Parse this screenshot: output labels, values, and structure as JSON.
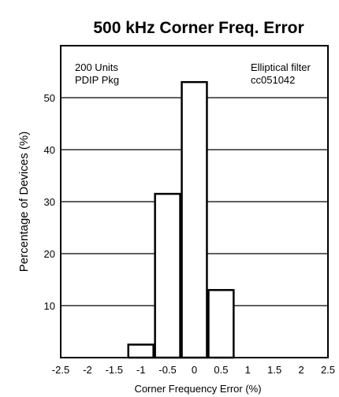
{
  "chart_data": {
    "type": "bar",
    "title": "500 kHz Corner Freq. Error",
    "xlabel": "Corner Frequency Error (%)",
    "ylabel": "Percentage of Devices (%)",
    "x_ticks": [
      "-2.5",
      "-2",
      "-1.5",
      "-1",
      "-0.5",
      "0",
      "0.5",
      "1",
      "1.5",
      "2",
      "2.5"
    ],
    "y_ticks": [
      "10",
      "20",
      "30",
      "40",
      "50"
    ],
    "xlim": [
      -2.5,
      2.5
    ],
    "ylim": [
      0,
      60
    ],
    "bin_width": 0.5,
    "bins": [
      {
        "center": -1.0,
        "value": 2.5
      },
      {
        "center": -0.5,
        "value": 31.5
      },
      {
        "center": 0.0,
        "value": 53
      },
      {
        "center": 0.5,
        "value": 13
      }
    ],
    "gridlines": [
      10,
      20,
      30,
      40,
      50
    ],
    "annotations": {
      "left": [
        "200 Units",
        "PDIP Pkg"
      ],
      "right": [
        "Elliptical filter",
        "cc051042"
      ]
    }
  }
}
